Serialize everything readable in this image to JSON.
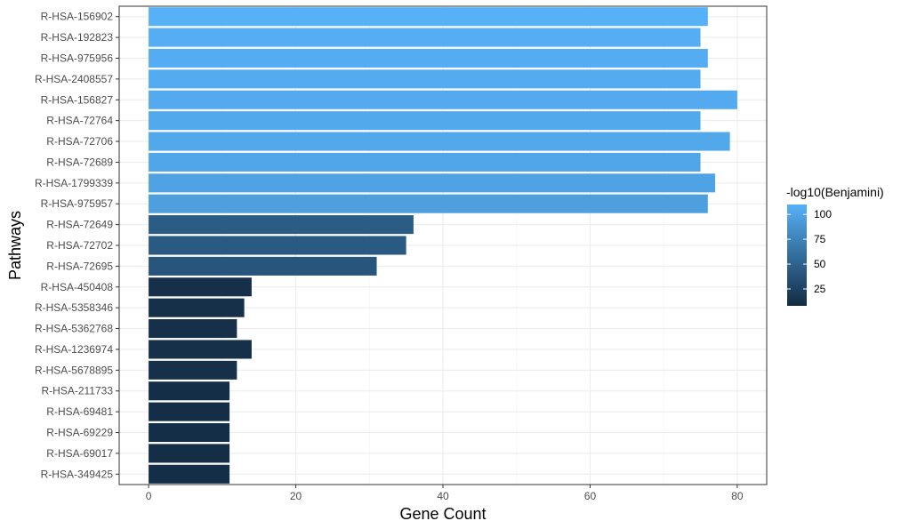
{
  "chart_data": {
    "type": "bar",
    "orientation": "horizontal",
    "xlabel": "Gene Count",
    "ylabel": "Pathways",
    "xlim": [
      -4,
      84
    ],
    "xticks": [
      0,
      20,
      40,
      60,
      80
    ],
    "xtick_labels": [
      "0",
      "20",
      "40",
      "60",
      "80"
    ],
    "grid": true,
    "categories": [
      "R-HSA-156902",
      "R-HSA-192823",
      "R-HSA-975956",
      "R-HSA-2408557",
      "R-HSA-156827",
      "R-HSA-72764",
      "R-HSA-72706",
      "R-HSA-72689",
      "R-HSA-1799339",
      "R-HSA-975957",
      "R-HSA-72649",
      "R-HSA-72702",
      "R-HSA-72695",
      "R-HSA-450408",
      "R-HSA-5358346",
      "R-HSA-5362768",
      "R-HSA-1236974",
      "R-HSA-5678895",
      "R-HSA-211733",
      "R-HSA-69481",
      "R-HSA-69229",
      "R-HSA-69017",
      "R-HSA-349425"
    ],
    "values": [
      76,
      75,
      76,
      75,
      80,
      75,
      79,
      75,
      77,
      76,
      36,
      35,
      31,
      14,
      13,
      12,
      14,
      12,
      11,
      11,
      11,
      11,
      11
    ],
    "color_values": [
      110,
      108,
      107,
      106,
      105,
      104,
      103,
      102,
      99,
      96,
      45,
      43,
      40,
      12,
      12,
      12,
      12,
      12,
      10,
      10,
      10,
      10,
      10
    ],
    "legend": {
      "title": "-log10(Benjamini)",
      "position": "right",
      "tick_values": [
        25,
        50,
        75,
        100
      ],
      "tick_labels": [
        "25",
        "50",
        "75",
        "100"
      ],
      "range": [
        8,
        110
      ],
      "color_low": "#132b43",
      "color_high": "#56b1f7"
    }
  }
}
